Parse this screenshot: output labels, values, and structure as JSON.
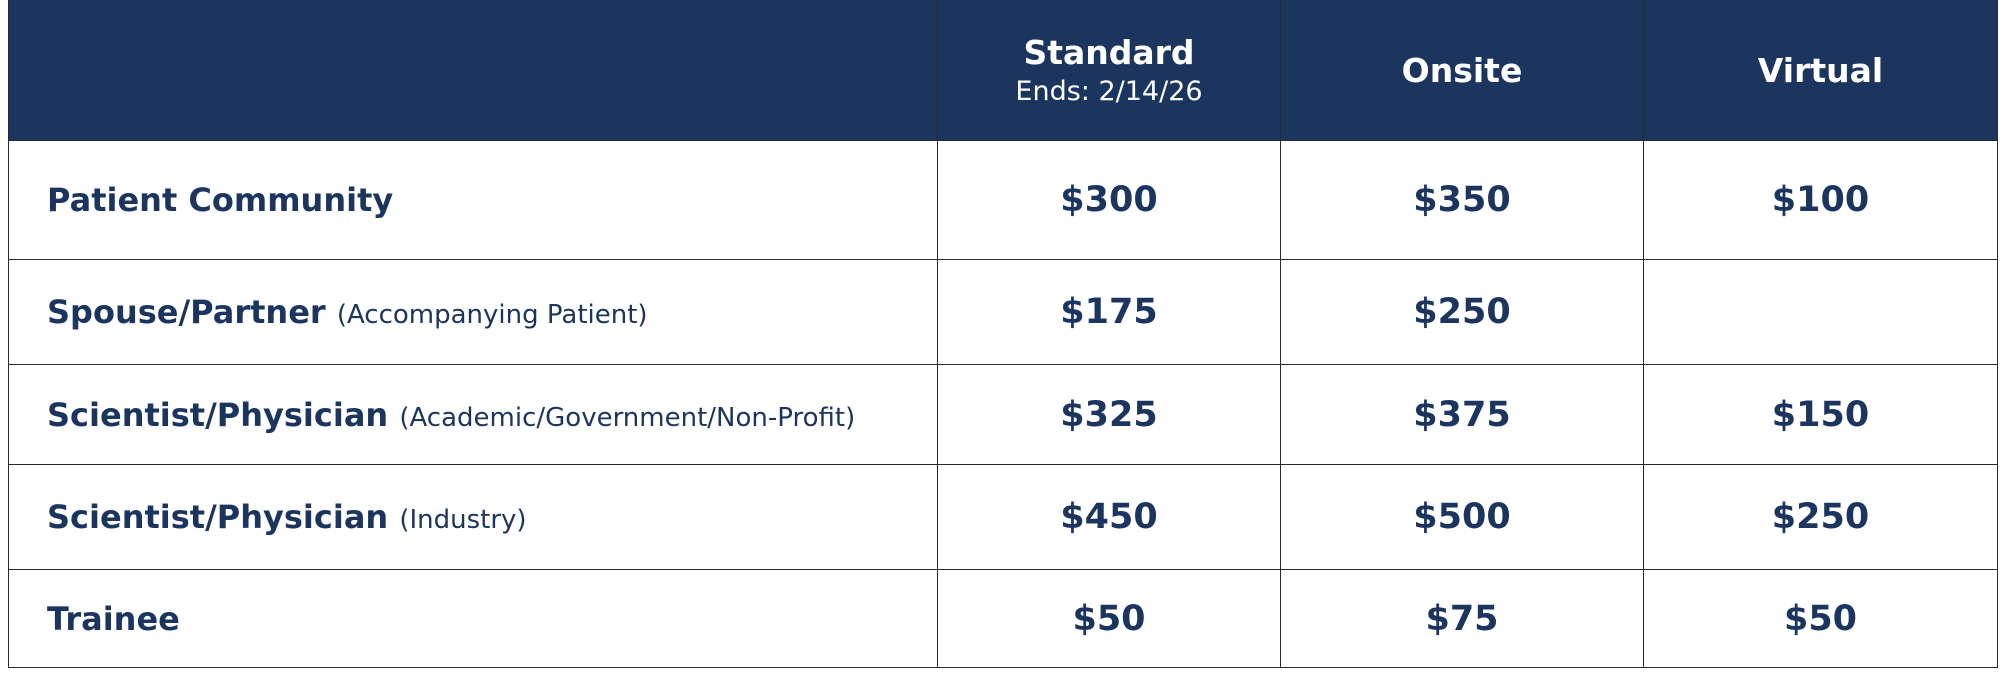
{
  "table": {
    "columns": [
      {
        "name": "Standard",
        "note": "Ends: 2/14/26"
      },
      {
        "name": "Onsite"
      },
      {
        "name": "Virtual"
      }
    ],
    "rows": [
      {
        "label": "Patient Community",
        "prices": [
          "$300",
          "$350",
          "$100"
        ]
      },
      {
        "label": "Spouse/Partner",
        "qualifier": "(Accompanying Patient)",
        "prices": [
          "$175",
          "$250",
          null
        ]
      },
      {
        "label": "Scientist/Physician",
        "qualifier": "(Academic/Government/Non-Profit)",
        "prices": [
          "$325",
          "$375",
          "$150"
        ]
      },
      {
        "label": "Scientist/Physician",
        "qualifier": "(Industry)",
        "prices": [
          "$450",
          "$500",
          "$250"
        ]
      },
      {
        "label": "Trainee",
        "prices": [
          "$50",
          "$75",
          "$50"
        ]
      }
    ]
  }
}
